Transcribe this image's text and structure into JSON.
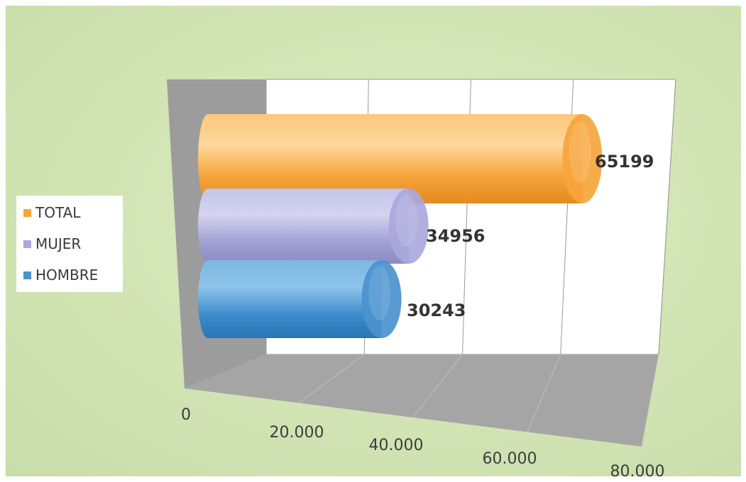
{
  "chart_data": {
    "type": "bar",
    "orientation": "horizontal",
    "style": "3d-cylinder",
    "categories": [
      "TOTAL",
      "MUJER",
      "HOMBRE"
    ],
    "values": [
      65199,
      34956,
      30243
    ],
    "data_labels": [
      "65199",
      "34956",
      "30243"
    ],
    "xlim": [
      0,
      80000
    ],
    "x_ticks": [
      0,
      20000,
      40000,
      60000,
      80000
    ],
    "x_tick_labels": [
      "0",
      "20.000",
      "40.000",
      "60.000",
      "80.000"
    ],
    "grid": true,
    "legend_position": "left",
    "colors": {
      "TOTAL": "#f6a53c",
      "MUJER": "#a9a8dc",
      "HOMBRE": "#4a93cf"
    }
  },
  "legend": {
    "items": [
      {
        "label": "TOTAL",
        "color": "#f6a53c"
      },
      {
        "label": "MUJER",
        "color": "#a9a8dc"
      },
      {
        "label": "HOMBRE",
        "color": "#4a93cf"
      }
    ]
  }
}
